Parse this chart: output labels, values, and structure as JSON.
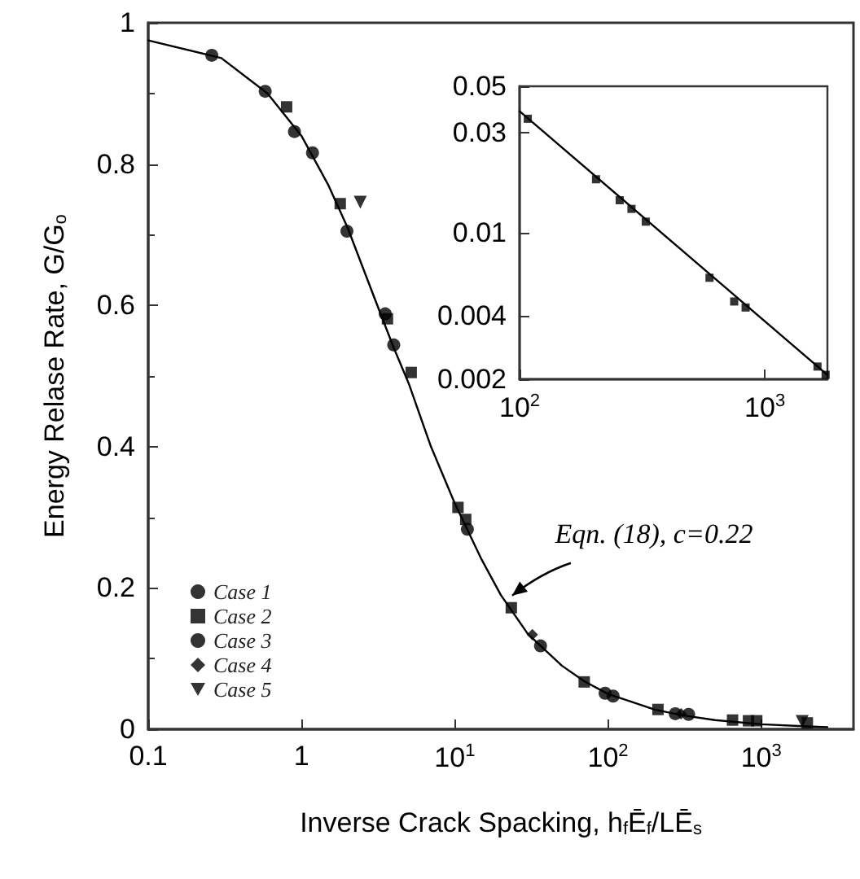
{
  "chart_data": [
    {
      "type": "scatter",
      "xlabel": "Inverse Crack Spacking, h$_{f}$Ē$_{f}$/LĒ$_{s}$",
      "ylabel": "Energy Relase Rate, G/G$_{o}$",
      "log": "x",
      "xlim": [
        0.1,
        4000
      ],
      "xticks": [
        0.1,
        1,
        {
          "value": 10,
          "label": "10$^{1}$"
        },
        {
          "value": 100,
          "label": "10$^{2}$"
        },
        {
          "value": 1000,
          "label": "10$^{3}$"
        }
      ],
      "ylim": [
        0,
        1
      ],
      "yticks": [
        0,
        0.2,
        0.4,
        0.6,
        0.8,
        1
      ],
      "legend": "bottom left",
      "annotations": [
        {
          "text": "Eqn. (18), c=0.22",
          "x": 21.5,
          "y": 0.18
        }
      ],
      "series": [
        {
          "type": "line",
          "color": "#000000",
          "marker": "none",
          "x": [
            0.1,
            0.3,
            0.6,
            1,
            1.5,
            2,
            3,
            4,
            5,
            7,
            10,
            15,
            20,
            30,
            50,
            70,
            100,
            200,
            300,
            500,
            1000,
            2000,
            2700
          ],
          "values": [
            0.975,
            0.95,
            0.9,
            0.84,
            0.77,
            0.71,
            0.61,
            0.54,
            0.49,
            0.4,
            0.32,
            0.24,
            0.19,
            0.135,
            0.09,
            0.068,
            0.05,
            0.028,
            0.02,
            0.013,
            0.007,
            0.004,
            0.003
          ]
        },
        {
          "name": "Case 1",
          "color": "#000000",
          "marker": "circle",
          "x": [
            0.26,
            0.58,
            0.9,
            1.18,
            1.98,
            4.0,
            12.1,
            36.3,
            108
          ],
          "values": [
            0.954,
            0.903,
            0.846,
            0.816,
            0.705,
            0.544,
            0.283,
            0.118,
            0.047
          ]
        },
        {
          "name": "Case 2",
          "color": "#000000",
          "marker": "square",
          "x": [
            0.8,
            1.79,
            3.64,
            5.2,
            10.5,
            826,
            935
          ],
          "values": [
            0.881,
            0.744,
            0.581,
            0.505,
            0.314,
            0.012,
            0.012
          ]
        },
        {
          "name": "Case 3",
          "color": "#000000",
          "marker": "circle",
          "x": [
            3.52,
            95.8,
            275,
            336
          ],
          "values": [
            0.588,
            0.051,
            0.022,
            0.021
          ]
        },
        {
          "name": "Case 4",
          "color": "#000000",
          "marker": "diamond",
          "x": [
            32.1,
            300
          ],
          "values": [
            0.134,
            0.022
          ]
        },
        {
          "name": "Case 5",
          "color": "#000000",
          "marker": "triangle",
          "x": [
            2.42,
            1850
          ],
          "values": [
            0.746,
            0.011
          ]
        },
        {
          "color": "#000000",
          "marker": "square",
          "x": [
            11.8,
            23.4,
            70,
            212,
            650,
            2000
          ],
          "values": [
            0.297,
            0.172,
            0.067,
            0.028,
            0.013,
            0.009
          ]
        }
      ]
    },
    {
      "type": "scatter",
      "log": "xy",
      "xlim": [
        100,
        1800
      ],
      "xticks": [
        {
          "value": 100,
          "label": "10$^{2}$"
        },
        {
          "value": 1000,
          "label": "10$^{3}$"
        }
      ],
      "ylim": [
        0.002,
        0.05
      ],
      "yticks": [
        0.002,
        0.004,
        0.01,
        0.03,
        0.05
      ],
      "series": [
        {
          "type": "line",
          "color": "#000000",
          "marker": "none",
          "x": [
            100,
            1800
          ],
          "values": [
            0.038,
            0.0021
          ]
        },
        {
          "color": "#000000",
          "marker": "square",
          "x": [
            108,
            205,
            256,
            286,
            327,
            595,
            750,
            835,
            1640,
            1770
          ],
          "values": [
            0.035,
            0.018,
            0.0143,
            0.013,
            0.0113,
            0.0061,
            0.0047,
            0.0044,
            0.0023,
            0.0021
          ]
        }
      ]
    }
  ]
}
